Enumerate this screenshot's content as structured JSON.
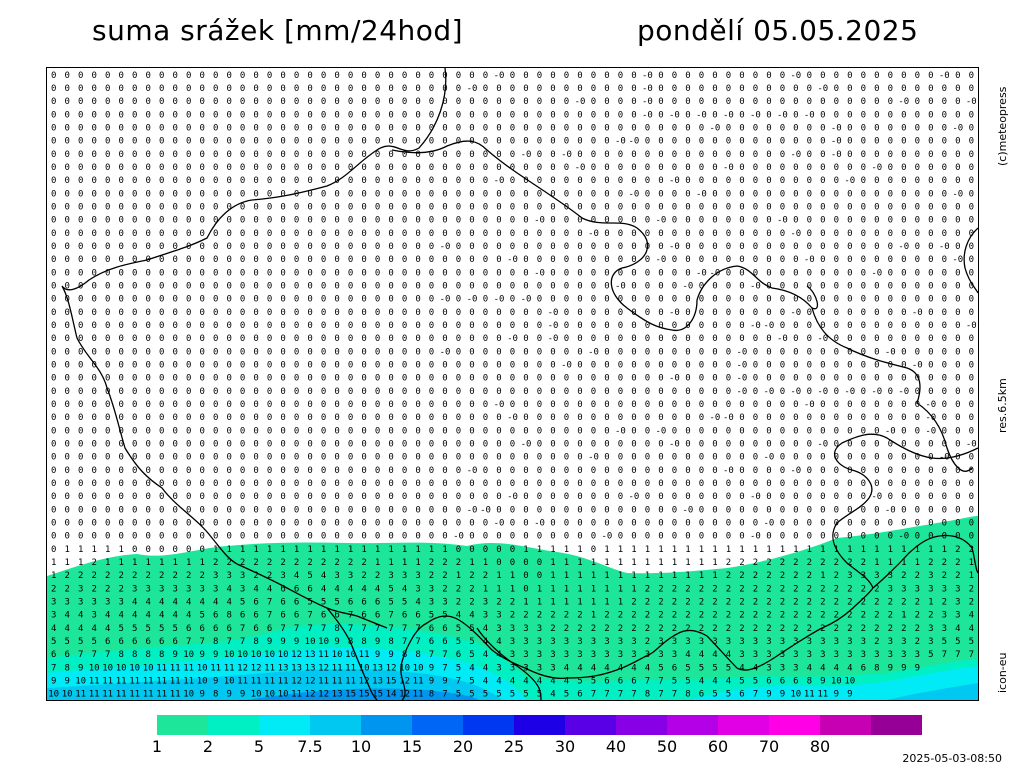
{
  "header": {
    "title": "suma srážek [mm/24hod]",
    "date": "pondělí 05.05.2025"
  },
  "side": {
    "copyright": "(c)meteopress",
    "resolution": "res.6.5km",
    "model": "icon-eu"
  },
  "legend": {
    "colors": [
      "#1de69b",
      "#00f0c3",
      "#00ebf5",
      "#00c8f0",
      "#0096f0",
      "#0066f5",
      "#0037f0",
      "#1e00e6",
      "#5a00e6",
      "#8700e6",
      "#b400e6",
      "#e100e6",
      "#ff00e6",
      "#c800b4",
      "#960096"
    ],
    "labels": [
      "1",
      "2",
      "5",
      "7.5",
      "10",
      "15",
      "20",
      "25",
      "30",
      "40",
      "50",
      "60",
      "70",
      "80"
    ]
  },
  "timestamp": "2025-05-03-08:50",
  "precip_bands": {
    "columns": 69,
    "bottom_rows": [
      "0 1 1 1 1 1 0 0 0 0 0 0 1 1 1 1 1 1 1 1 1 1 1 1 1 1 1 1 1 1 0 0 0 0 0 1 1 1 1 1 0 1 1 1 1 1 1 1 1 1 1 1 1 1 1 1 1 1 1 1 1 1 1 1 1 1 1 2 2",
      "1 1 1 2 1 1 1 1 1 1 1 1 2 2 2 2 2 2 2 2 2 2 2 2 1 1 1 1 2 2 2 1 1 0 0 0 0 1 1 1 1 1 1 1 1 1 1 1 1 1 2 2 2 2 2 2 2 2 2 2 2 1 1 1 1 2 2 2 1",
      "1 2 2 2 2 2 2 2 2 2 2 2 3 3 3 2 2 3 4 5 4 3 3 2 2 3 3 3 2 2 1 2 2 1 1 0 0 1 1 1 1 1 1 1 1 1 1 1 1 1 2 2 2 2 2 2 2 1 2 3 3 3 3 2 2 3 2 2 1",
      "2 2 3 2 2 2 3 3 3 3 3 3 3 4 3 4 4 6 6 6 4 4 4 4 4 5 4 3 3 2 2 2 1 1 1 0 1 1 1 1 1 1 1 1 2 2 2 2 2 2 2 2 2 2 2 2 2 2 2 2 2 2 3 3 3 3 3 3 2",
      "3 3 3 3 3 3 4 4 4 4 4 4 4 4 5 6 7 6 6 5 5 5 6 6 6 5 5 4 3 3 2 2 3 2 2 1 1 1 1 1 1 1 1 2 2 2 2 2 2 2 2 2 2 2 2 2 2 2 2 2 2 2 2 2 2 1 2 3 2",
      "3 4 4 3 4 4 4 4 4 4 4 5 6 8 6 6 7 6 6 7 6 6 7 6 6 7 6 6 5 5 4 4 3 3 2 2 2 2 2 2 1 2 2 2 2 2 2 2 2 2 2 2 2 2 2 2 2 2 2 2 2 2 2 1 2 2 3 3 4",
      "4 4 4 4 4 5 5 5 5 5 6 6 6 6 7 6 6 7 7 7 7 8 7 7 7 7 7 7 6 6 5 5 4 3 3 3 3 2 2 2 2 2 2 2 2 2 2 2 2 2 2 2 2 2 2 2 2 2 2 2 2 2 2 2 2 3 3 4 4",
      "5 5 5 5 6 6 6 6 6 6 7 7 8 7 7 8 9 9 9 10 10 9 8 8 9 8 7 7 6 6 5 5 4 4 3 3 3 3 3 3 3 3 3 3 2 3 3 3 3 3 3 3 3 3 3 3 3 3 3 3 3 2 3 3 2 3 5 5 5",
      "6 6 7 7 7 8 8 8 8 9 10 9 9 10 10 10 10 10 12 13 11 10 10 11 9 9 8 8 7 7 6 5 4 4 3 3 3 3 3 3 3 3 3 3 3 3 3 4 4 4 4 3 3 3 3 3 3 3 3 3 3 3 3 3 3 5 7 7 7",
      "7 8 9 10 10 10 10 10 11 11 11 10 11 11 12 12 11 13 13 13 12 11 11 10 13 12 10 10 9 7 5 4 4 3 3 3 3 3 4 4 4 4 4 4 4 5 6 5 5 5 5 4 4 3 3 3 4 4 4 4 6 8 9 9 9",
      "9 9 10 11 11 11 11 11 11 11 11 10 9 10 11 11 11 11 12 12 11 11 11 12 13 15 12 11 9 9 7 5 4 4 4 4 4 4 4 5 5 6 6 6 7 7 5 5 4 4 4 5 5 6 6 6 8 9 10 10",
      "10 10 11 11 11 11 11 11 11 11 10 9 8 9 9 10 10 10 11 12 12 13 15 15 15 14 12 11 8 7 5 5 5 5 5 5 5 4 5 6 7 7 7 7 8 7 7 8 6 5 5 6 7 9 9 10 11 11 9 9"
    ]
  }
}
